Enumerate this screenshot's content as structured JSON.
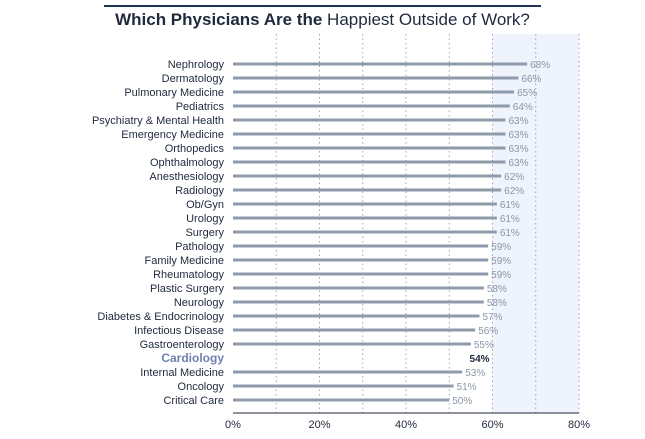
{
  "header": {
    "title_bold": "Which Physicians Are the",
    "title_regular": "Happiest Outside of Work?"
  },
  "chart_data": {
    "type": "bar",
    "orientation": "horizontal",
    "categories": [
      "Nephrology",
      "Dermatology",
      "Pulmonary Medicine",
      "Pediatrics",
      "Psychiatry & Mental Health",
      "Emergency Medicine",
      "Orthopedics",
      "Ophthalmology",
      "Anesthesiology",
      "Radiology",
      "Ob/Gyn",
      "Urology",
      "Surgery",
      "Pathology",
      "Family Medicine",
      "Rheumatology",
      "Plastic Surgery",
      "Neurology",
      "Diabetes & Endocrinology",
      "Infectious Disease",
      "Gastroenterology",
      "Cardiology",
      "Internal Medicine",
      "Oncology",
      "Critical Care"
    ],
    "values": [
      68,
      66,
      65,
      64,
      63,
      63,
      63,
      63,
      62,
      62,
      61,
      61,
      61,
      59,
      59,
      59,
      58,
      58,
      57,
      56,
      55,
      54,
      53,
      51,
      50
    ],
    "value_labels": [
      "68%",
      "66%",
      "65%",
      "64%",
      "63%",
      "63%",
      "63%",
      "63%",
      "62%",
      "62%",
      "61%",
      "61%",
      "61%",
      "59%",
      "59%",
      "59%",
      "58%",
      "58%",
      "57%",
      "56%",
      "55%",
      "54%",
      "53%",
      "51%",
      "50%"
    ],
    "highlight": "Cardiology",
    "xlim": [
      0,
      80
    ],
    "x_ticks": [
      0,
      20,
      40,
      60,
      80
    ],
    "x_tick_labels": [
      "0%",
      "20%",
      "40%",
      "60%",
      "80%"
    ],
    "grid": "vertical dotted every 10%",
    "shaded_region": [
      60,
      80
    ],
    "colors": {
      "bar": "#8f9bab",
      "highlight_bar": "#1f3354",
      "highlight_label": "#6f7fb0",
      "shade": "#eef3fc"
    }
  }
}
